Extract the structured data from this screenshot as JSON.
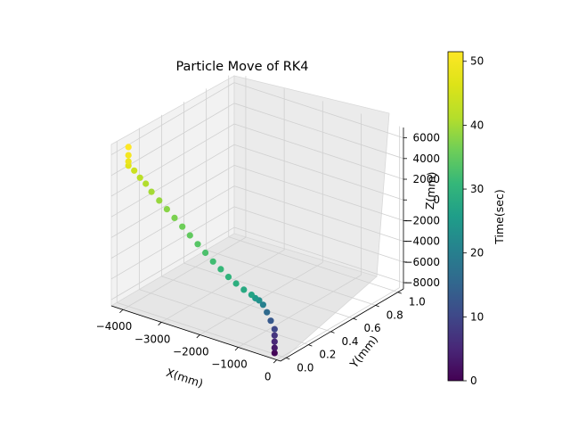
{
  "chart_data": {
    "type": "scatter",
    "projection": "3d",
    "title": "Particle Move of  RK4",
    "xlabel": "X(mm)",
    "ylabel": "Y(mm)",
    "zlabel": "Z(mm)",
    "xlim": [
      -4300,
      100
    ],
    "ylim": [
      -0.05,
      1.05
    ],
    "zlim": [
      -8600,
      7000
    ],
    "x_ticks": [
      -4000,
      -3000,
      -2000,
      -1000,
      0
    ],
    "x_tick_labels": [
      "−4000",
      "−3000",
      "−2000",
      "−1000",
      "0"
    ],
    "y_ticks": [
      0.0,
      0.2,
      0.4,
      0.6,
      0.8,
      1.0
    ],
    "y_tick_labels": [
      "0.0",
      "0.2",
      "0.4",
      "0.6",
      "0.8",
      "1.0"
    ],
    "z_ticks": [
      -8000,
      -6000,
      -4000,
      -2000,
      0,
      2000,
      4000,
      6000
    ],
    "z_tick_labels": [
      "−8000",
      "−6000",
      "−4000",
      "−2000",
      "0",
      "2000",
      "4000",
      "6000"
    ],
    "grid": true,
    "colormap": "viridis",
    "colorbar": {
      "label": "Time(sec)",
      "range": [
        0,
        51.5
      ],
      "ticks": [
        0,
        10,
        20,
        30,
        40,
        50
      ],
      "tick_labels": [
        "0",
        "10",
        "20",
        "30",
        "40",
        "50"
      ]
    },
    "points": {
      "x": [
        -200,
        -200,
        -200,
        -200,
        -200,
        -300,
        -400,
        -500,
        -600,
        -700,
        -800,
        -1000,
        -1200,
        -1400,
        -1600,
        -1800,
        -2000,
        -2200,
        -2400,
        -2600,
        -2800,
        -3000,
        -3200,
        -3400,
        -3550,
        -3700,
        -3850,
        -4000,
        -4000,
        -4000,
        -4000
      ],
      "y": [
        0.0,
        0.0,
        0.0,
        0.0,
        0.0,
        0.0,
        0.0,
        0.0,
        0.0,
        0.0,
        0.0,
        0.0,
        0.0,
        0.0,
        0.0,
        0.0,
        0.0,
        0.0,
        0.0,
        0.0,
        0.0,
        0.0,
        0.0,
        0.0,
        0.0,
        0.0,
        0.0,
        0.0,
        0.0,
        0.0,
        0.0
      ],
      "z": [
        -8500,
        -8000,
        -7400,
        -6800,
        -6200,
        -5500,
        -4800,
        -4200,
        -3900,
        -3800,
        -3600,
        -3350,
        -3000,
        -2600,
        -2100,
        -1600,
        -1000,
        -400,
        200,
        800,
        1400,
        2000,
        2600,
        3200,
        3800,
        4200,
        4700,
        5000,
        5400,
        6000,
        6800
      ],
      "time": [
        0.5,
        3,
        5,
        7,
        10,
        13,
        16,
        20,
        23,
        25,
        27,
        28,
        29,
        30,
        31,
        32,
        33,
        34,
        35,
        36,
        37,
        38,
        39,
        40,
        41,
        42,
        44,
        47,
        49,
        50,
        51.5
      ]
    }
  }
}
